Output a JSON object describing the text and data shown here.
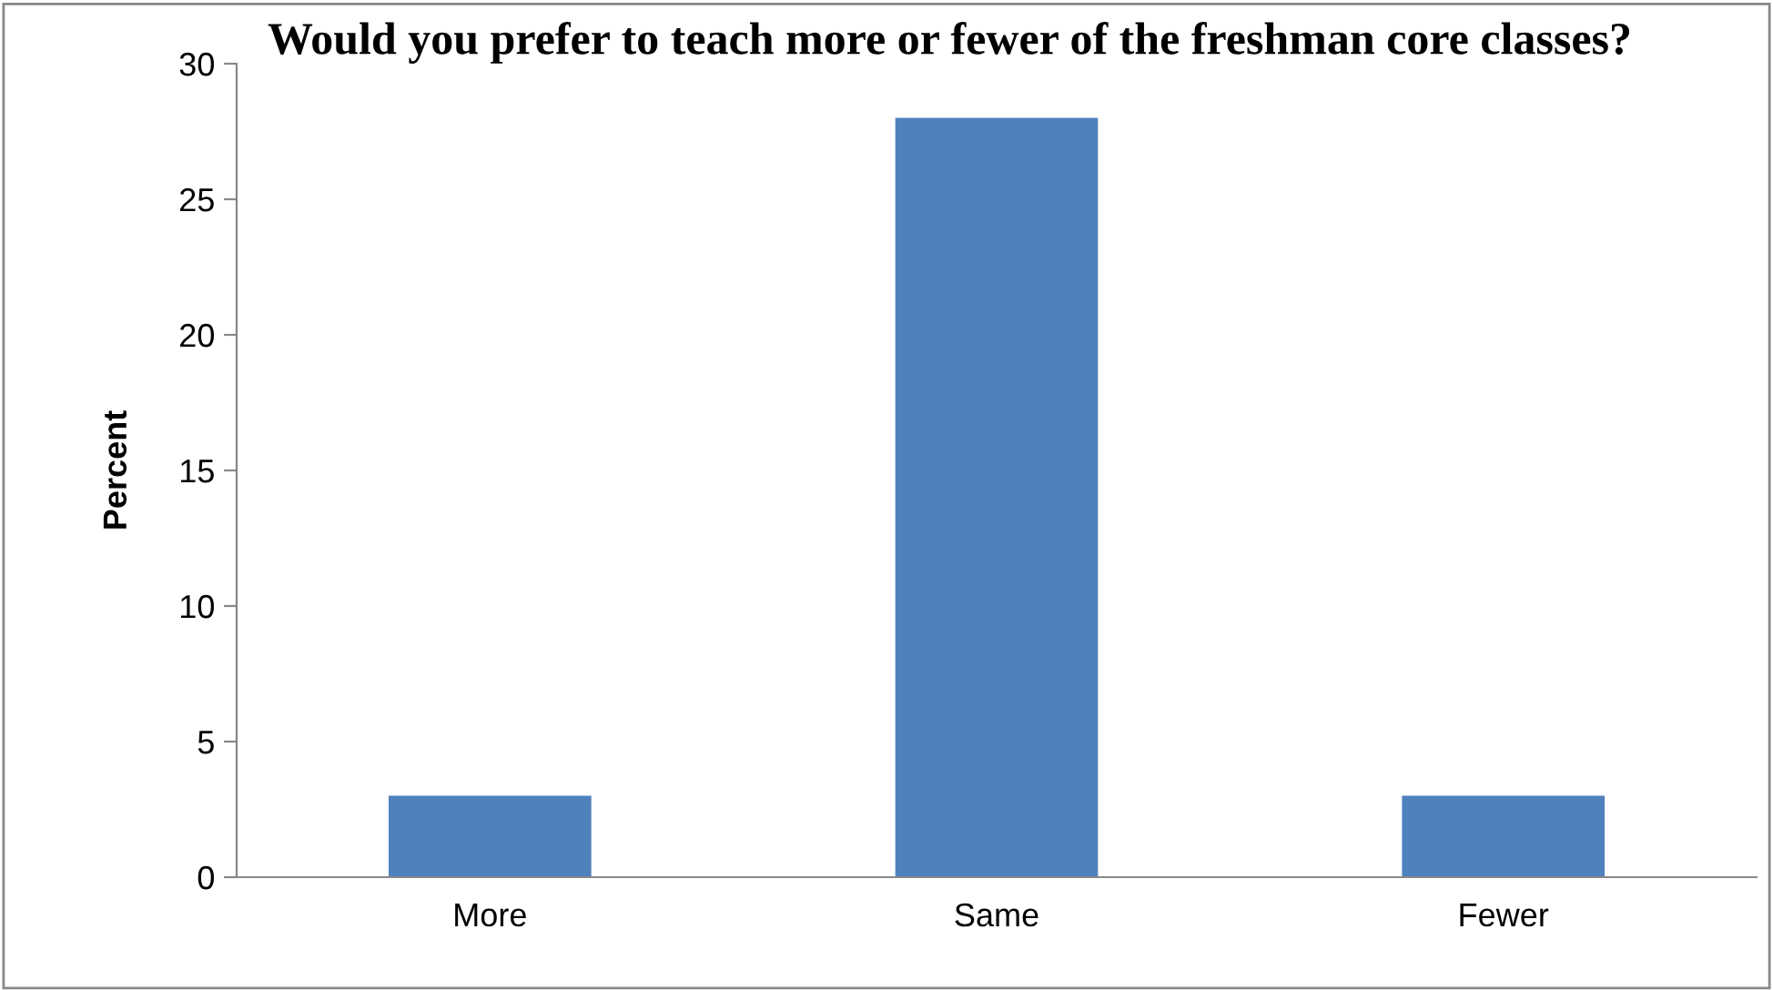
{
  "chart_data": {
    "type": "bar",
    "title": "Would you prefer to teach more or fewer of the freshman core classes?",
    "ylabel": "Percent",
    "categories": [
      "More",
      "Same",
      "Fewer"
    ],
    "values": [
      3,
      28,
      3
    ],
    "color": "#4f81bd",
    "ylim": [
      0,
      30
    ],
    "yticks": [
      0,
      5,
      10,
      15,
      20,
      25,
      30
    ],
    "grid": false,
    "legend": false
  }
}
